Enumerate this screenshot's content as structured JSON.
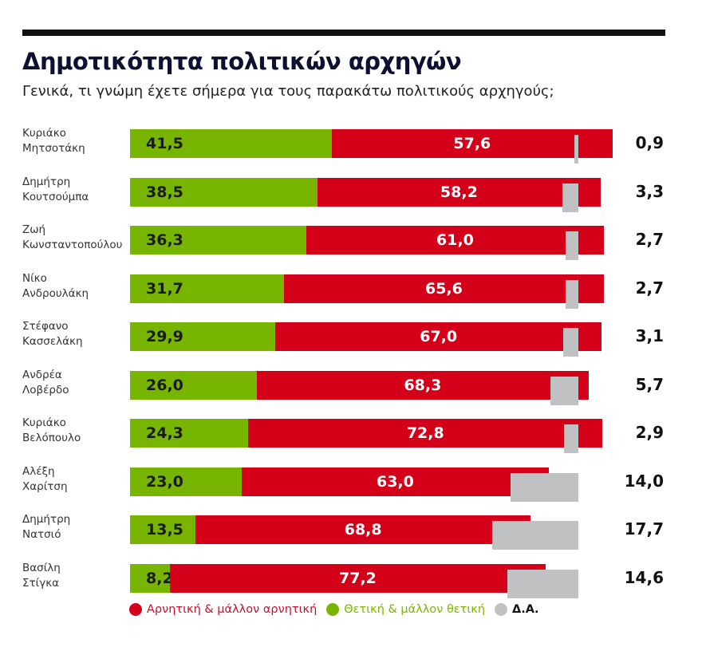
{
  "chart_data": {
    "type": "bar",
    "orientation": "horizontal",
    "stacked": true,
    "title": "Δημοτικότητα πολιτικών αρχηγών",
    "subtitle": "Γενικά, τι γνώμη έχετε σήμερα για τους παρακάτω πολιτικούς αρχηγούς;",
    "categories": [
      "Κυριάκο\nΜητσοτάκη",
      "Δημήτρη\nΚουτσούμπα",
      "Ζωή\nΚωνσταντοπούλου",
      "Νίκο\nΑνδρουλάκη",
      "Στέφανο\nΚασσελάκη",
      "Ανδρέα\nΛοβέρδο",
      "Κυριάκο\nΒελόπουλο",
      "Αλέξη\nΧαρίτση",
      "Δημήτρη\nΝατσιό",
      "Βασίλη\nΣτίγκα"
    ],
    "series": [
      {
        "name": "Θετική & μάλλον θετική",
        "color": "#78b500",
        "values": [
          "41,5",
          "38,5",
          "36,3",
          "31,7",
          "29,9",
          "26,0",
          "24,3",
          "23,0",
          "13,5",
          "8,2"
        ]
      },
      {
        "name": "Αρνητική & μάλλον αρνητική",
        "color": "#d4001a",
        "values": [
          "57,6",
          "58,2",
          "61,0",
          "65,6",
          "67,0",
          "68,3",
          "72,8",
          "63,0",
          "68,8",
          "77,2"
        ]
      },
      {
        "name": "Δ.Α.",
        "color": "#bfc1c3",
        "values": [
          "0,9",
          "3,3",
          "2,7",
          "2,7",
          "3,1",
          "5,7",
          "2,9",
          "14,0",
          "17,7",
          "14,6"
        ]
      }
    ],
    "legend_order": [
      1,
      0,
      2
    ],
    "legend_placement": "bottom",
    "xlim": [
      0,
      100
    ]
  }
}
